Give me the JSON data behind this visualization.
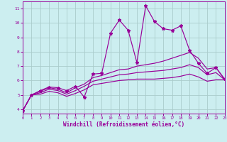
{
  "xlabel": "Windchill (Refroidissement éolien,°C)",
  "background_color": "#cceef0",
  "line_color": "#990099",
  "grid_color": "#aacccc",
  "xlim": [
    0,
    23
  ],
  "ylim": [
    3.7,
    11.5
  ],
  "xticks": [
    0,
    1,
    2,
    3,
    4,
    5,
    6,
    7,
    8,
    9,
    10,
    11,
    12,
    13,
    14,
    15,
    16,
    17,
    18,
    19,
    20,
    21,
    22,
    23
  ],
  "yticks": [
    4,
    5,
    6,
    7,
    8,
    9,
    10,
    11
  ],
  "line1": {
    "x": [
      0,
      1,
      2,
      3,
      4,
      5,
      6,
      7,
      8,
      9,
      10,
      11,
      12,
      13,
      14,
      15,
      16,
      17,
      18,
      19,
      20,
      21,
      22,
      23
    ],
    "y": [
      3.9,
      5.0,
      5.3,
      5.55,
      5.5,
      5.3,
      5.6,
      4.85,
      6.45,
      6.5,
      9.3,
      10.2,
      9.5,
      7.25,
      11.2,
      10.1,
      9.6,
      9.5,
      9.8,
      8.1,
      7.2,
      6.5,
      6.9,
      6.1
    ],
    "linestyle": "-",
    "has_markers": true
  },
  "line2": {
    "x": [
      0,
      1,
      2,
      3,
      4,
      5,
      6,
      7,
      8,
      9,
      10,
      11,
      12,
      13,
      14,
      15,
      16,
      17,
      18,
      19,
      20,
      21,
      22,
      23
    ],
    "y": [
      3.9,
      5.0,
      5.25,
      5.5,
      5.4,
      5.15,
      5.5,
      5.75,
      6.2,
      6.35,
      6.55,
      6.75,
      6.8,
      7.0,
      7.1,
      7.2,
      7.35,
      7.55,
      7.75,
      7.95,
      7.55,
      6.8,
      6.9,
      6.05
    ],
    "linestyle": "-",
    "has_markers": false
  },
  "line3": {
    "x": [
      0,
      1,
      2,
      3,
      4,
      5,
      6,
      7,
      8,
      9,
      10,
      11,
      12,
      13,
      14,
      15,
      16,
      17,
      18,
      19,
      20,
      21,
      22,
      23
    ],
    "y": [
      3.9,
      5.0,
      5.15,
      5.4,
      5.3,
      5.05,
      5.3,
      5.6,
      5.95,
      6.1,
      6.25,
      6.4,
      6.45,
      6.55,
      6.6,
      6.65,
      6.7,
      6.8,
      6.9,
      7.1,
      6.9,
      6.4,
      6.55,
      6.05
    ],
    "linestyle": "-",
    "has_markers": false
  },
  "line4": {
    "x": [
      0,
      1,
      2,
      3,
      4,
      5,
      6,
      7,
      8,
      9,
      10,
      11,
      12,
      13,
      14,
      15,
      16,
      17,
      18,
      19,
      20,
      21,
      22,
      23
    ],
    "y": [
      3.9,
      5.0,
      5.05,
      5.25,
      5.15,
      4.9,
      5.1,
      5.35,
      5.7,
      5.8,
      5.9,
      6.0,
      6.05,
      6.1,
      6.1,
      6.1,
      6.15,
      6.2,
      6.3,
      6.45,
      6.25,
      5.95,
      6.05,
      6.05
    ],
    "linestyle": "-",
    "has_markers": false
  }
}
